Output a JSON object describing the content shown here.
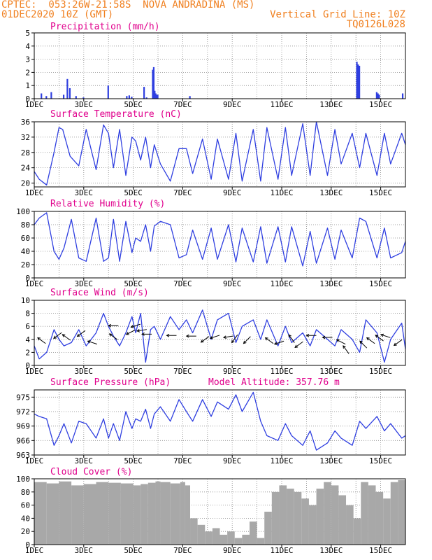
{
  "header": {
    "line1": "CPTEC:  053:26W-21:58S  NOVA ANDRADINA (MS)",
    "line2": "01DEC2020 10Z (GMT)",
    "grid_note": "Vertical Grid Line: 10Z",
    "code": "TQ0126L028"
  },
  "colors": {
    "header": "#f08020",
    "panel_title": "#e0008c",
    "series": "#2f3fe0",
    "cloud": "#a8a8a8",
    "wind_arrow": "#000000"
  },
  "chart_data": [
    {
      "id": "precip",
      "type": "bar",
      "title": "Precipitation (mm/h)",
      "ylim": [
        0,
        5
      ],
      "yticks": [
        0,
        1,
        2,
        3,
        4,
        5
      ],
      "x_day_range": [
        1,
        16
      ],
      "bars": [
        [
          1.3,
          0.4
        ],
        [
          1.5,
          0.2
        ],
        [
          1.7,
          0.5
        ],
        [
          2.2,
          0.3
        ],
        [
          2.35,
          1.5
        ],
        [
          2.45,
          0.8
        ],
        [
          2.7,
          0.2
        ],
        [
          3.0,
          0.1
        ],
        [
          4.0,
          1.0
        ],
        [
          4.75,
          0.2
        ],
        [
          4.85,
          0.25
        ],
        [
          4.95,
          0.15
        ],
        [
          5.45,
          0.9
        ],
        [
          5.55,
          0.1
        ],
        [
          5.8,
          2.2
        ],
        [
          5.84,
          2.4
        ],
        [
          5.88,
          0.6
        ],
        [
          5.92,
          0.4
        ],
        [
          5.96,
          0.3
        ],
        [
          6.0,
          0.3
        ],
        [
          7.3,
          0.2
        ],
        [
          14.05,
          2.8
        ],
        [
          14.1,
          2.6
        ],
        [
          14.15,
          2.5
        ],
        [
          14.85,
          0.5
        ],
        [
          14.9,
          0.4
        ],
        [
          14.95,
          0.3
        ],
        [
          15.9,
          0.4
        ]
      ],
      "tick_labels": [
        "1DEC",
        "3DEC",
        "5DEC",
        "7DEC",
        "9DEC",
        "11DEC",
        "13DEC",
        "15DEC"
      ]
    },
    {
      "id": "temp",
      "type": "line",
      "title": "Surface Temperature (nC)",
      "ylim": [
        19,
        36
      ],
      "yticks": [
        20,
        24,
        28,
        32,
        36
      ],
      "x_day_range": [
        1,
        16
      ],
      "x": [
        1.0,
        1.2,
        1.5,
        1.8,
        2.0,
        2.15,
        2.45,
        2.8,
        3.1,
        3.5,
        3.8,
        4.0,
        4.2,
        4.45,
        4.7,
        4.95,
        5.1,
        5.3,
        5.5,
        5.7,
        5.85,
        6.1,
        6.5,
        6.85,
        7.15,
        7.4,
        7.8,
        8.15,
        8.4,
        8.85,
        9.15,
        9.4,
        9.85,
        10.15,
        10.4,
        10.85,
        11.15,
        11.4,
        11.85,
        12.15,
        12.4,
        12.85,
        13.15,
        13.4,
        13.85,
        14.15,
        14.4,
        14.85,
        15.15,
        15.4,
        15.85,
        16.0
      ],
      "y": [
        23,
        21,
        19.5,
        28,
        34.5,
        34,
        27,
        24.5,
        34,
        23.5,
        35.2,
        33,
        24,
        34,
        22,
        32,
        31,
        26,
        32,
        24,
        30,
        25,
        20.5,
        29,
        29,
        22.5,
        31.5,
        21,
        31.5,
        21,
        33,
        20.5,
        34,
        20.5,
        34.5,
        21,
        34.5,
        22,
        35.5,
        22,
        36,
        22,
        34,
        25,
        33,
        24,
        33,
        22,
        33,
        25,
        33,
        30
      ]
    },
    {
      "id": "rh",
      "type": "line",
      "title": "Relative Humidity (%)",
      "ylim": [
        0,
        100
      ],
      "yticks": [
        0,
        20,
        40,
        60,
        80,
        100
      ],
      "x_day_range": [
        1,
        16
      ],
      "x": [
        1.0,
        1.2,
        1.5,
        1.8,
        2.0,
        2.2,
        2.5,
        2.8,
        3.1,
        3.5,
        3.8,
        4.0,
        4.2,
        4.45,
        4.7,
        4.95,
        5.1,
        5.3,
        5.5,
        5.7,
        5.85,
        6.1,
        6.5,
        6.85,
        7.15,
        7.4,
        7.8,
        8.15,
        8.4,
        8.85,
        9.15,
        9.4,
        9.85,
        10.15,
        10.4,
        10.85,
        11.15,
        11.4,
        11.85,
        12.15,
        12.4,
        12.85,
        13.15,
        13.4,
        13.85,
        14.15,
        14.4,
        14.85,
        15.15,
        15.4,
        15.85,
        16.0
      ],
      "y": [
        80,
        90,
        98,
        40,
        28,
        45,
        88,
        30,
        25,
        90,
        25,
        30,
        88,
        25,
        85,
        38,
        60,
        55,
        80,
        40,
        78,
        85,
        80,
        30,
        35,
        72,
        28,
        75,
        28,
        80,
        24,
        75,
        24,
        77,
        22,
        77,
        24,
        77,
        18,
        70,
        22,
        75,
        28,
        72,
        30,
        90,
        85,
        30,
        75,
        30,
        38,
        55
      ]
    },
    {
      "id": "wind",
      "type": "line",
      "title": "Surface Wind (m/s)",
      "ylim": [
        0,
        10
      ],
      "yticks": [
        0,
        2,
        4,
        6,
        8,
        10
      ],
      "x_day_range": [
        1,
        16
      ],
      "x": [
        1.0,
        1.2,
        1.5,
        1.8,
        2.0,
        2.2,
        2.5,
        2.8,
        3.1,
        3.5,
        3.8,
        4.0,
        4.2,
        4.45,
        4.7,
        4.95,
        5.1,
        5.3,
        5.5,
        5.7,
        5.85,
        6.1,
        6.5,
        6.85,
        7.15,
        7.4,
        7.8,
        8.15,
        8.4,
        8.85,
        9.15,
        9.4,
        9.85,
        10.15,
        10.4,
        10.85,
        11.15,
        11.4,
        11.85,
        12.15,
        12.4,
        12.85,
        13.15,
        13.4,
        13.85,
        14.15,
        14.4,
        14.85,
        15.15,
        15.4,
        15.85,
        16.0
      ],
      "y": [
        3,
        1,
        2,
        5.5,
        4,
        3,
        3.5,
        5.5,
        3,
        5,
        8,
        6,
        4.5,
        3,
        5,
        7.5,
        5,
        8,
        0.5,
        5.5,
        6,
        4,
        7.5,
        5.5,
        7,
        5,
        8.5,
        4,
        7,
        8,
        3.5,
        6,
        7,
        4,
        7,
        3,
        6,
        3.5,
        5,
        3,
        5.5,
        4,
        3,
        5.5,
        4,
        2,
        7,
        5,
        0.5,
        4,
        6.5,
        2.5
      ],
      "arrows": [
        [
          1.3,
          3.8,
          -0.2
        ],
        [
          1.95,
          4.6,
          0.2
        ],
        [
          2.3,
          4.3,
          -0.2
        ],
        [
          2.9,
          4.9,
          0.2
        ],
        [
          3.35,
          3.5,
          -0.1
        ],
        [
          4.2,
          4.4,
          -0.2
        ],
        [
          4.2,
          6.1,
          0
        ],
        [
          4.9,
          5.1,
          0.15
        ],
        [
          5.1,
          6.1,
          0.1
        ],
        [
          5.35,
          5.4,
          0.05
        ],
        [
          5.55,
          4.8,
          0
        ],
        [
          6.55,
          4.6,
          0
        ],
        [
          7.35,
          4.5,
          0
        ],
        [
          7.9,
          4.0,
          0.2
        ],
        [
          8.3,
          4.4,
          0.1
        ],
        [
          8.85,
          4.4,
          0.05
        ],
        [
          9.1,
          4.1,
          0.3
        ],
        [
          9.6,
          3.9,
          0.25
        ],
        [
          10.5,
          3.8,
          -0.2
        ],
        [
          10.9,
          3.5,
          0.1
        ],
        [
          11.4,
          4.1,
          -0.3
        ],
        [
          11.7,
          3.2,
          0.2
        ],
        [
          12.2,
          4.6,
          0
        ],
        [
          12.85,
          4.3,
          0
        ],
        [
          13.4,
          3.6,
          -0.15
        ],
        [
          13.6,
          2.4,
          -0.3
        ],
        [
          14.3,
          3.2,
          -0.25
        ],
        [
          14.6,
          3.8,
          -0.2
        ],
        [
          14.95,
          4.2,
          -0.2
        ],
        [
          15.2,
          4.5,
          -0.1
        ],
        [
          15.7,
          3.5,
          0.2
        ]
      ]
    },
    {
      "id": "pressure",
      "type": "line",
      "title": "Surface Pressure (hPa)",
      "annotation": "Model Altitude: 357.76 m",
      "ylim": [
        963,
        976.5
      ],
      "yticks": [
        963,
        966,
        969,
        972,
        975
      ],
      "x_day_range": [
        1,
        16
      ],
      "x": [
        1.0,
        1.2,
        1.5,
        1.8,
        2.0,
        2.2,
        2.5,
        2.8,
        3.1,
        3.5,
        3.8,
        4.0,
        4.2,
        4.45,
        4.7,
        4.95,
        5.1,
        5.3,
        5.5,
        5.7,
        5.85,
        6.1,
        6.5,
        6.85,
        7.15,
        7.4,
        7.8,
        8.15,
        8.4,
        8.85,
        9.15,
        9.4,
        9.85,
        10.15,
        10.4,
        10.85,
        11.15,
        11.4,
        11.85,
        12.15,
        12.4,
        12.85,
        13.15,
        13.4,
        13.85,
        14.15,
        14.4,
        14.85,
        15.15,
        15.4,
        15.85,
        16.0
      ],
      "y": [
        971.5,
        971,
        970.5,
        965,
        967,
        969.5,
        965.5,
        970,
        969.5,
        966.5,
        970.5,
        966.5,
        969.5,
        966,
        972,
        968.5,
        970.5,
        970,
        972.5,
        968.5,
        971.5,
        973,
        970,
        974.5,
        972,
        970,
        974.5,
        971,
        974,
        972.5,
        975.5,
        972,
        976,
        970,
        967,
        966,
        969.5,
        967,
        965,
        968,
        964,
        965.5,
        968,
        966.5,
        965,
        970,
        968.5,
        971,
        968,
        969.5,
        966.5,
        967
      ]
    },
    {
      "id": "cloud",
      "type": "bar",
      "title": "Cloud Cover (%)",
      "ylim": [
        0,
        100
      ],
      "yticks": [
        0,
        20,
        40,
        60,
        80,
        100
      ],
      "x_day_range": [
        1,
        16
      ],
      "x": [
        1.0,
        1.5,
        2.0,
        2.5,
        3.0,
        3.5,
        4.0,
        4.5,
        5.0,
        5.3,
        5.6,
        5.9,
        6.1,
        6.5,
        6.9,
        7.1,
        7.3,
        7.6,
        7.9,
        8.2,
        8.5,
        8.8,
        9.1,
        9.4,
        9.7,
        10.0,
        10.3,
        10.6,
        10.9,
        11.2,
        11.5,
        11.8,
        12.1,
        12.4,
        12.7,
        13.0,
        13.3,
        13.6,
        13.9,
        14.2,
        14.5,
        14.8,
        15.1,
        15.4,
        15.7,
        16.0
      ],
      "y": [
        95,
        93,
        96,
        90,
        92,
        95,
        94,
        93,
        90,
        92,
        94,
        96,
        95,
        93,
        95,
        90,
        40,
        30,
        20,
        25,
        15,
        20,
        10,
        15,
        35,
        10,
        50,
        80,
        90,
        85,
        80,
        70,
        60,
        85,
        95,
        90,
        75,
        60,
        40,
        95,
        90,
        80,
        70,
        95,
        98,
        95
      ],
      "tick_labels": [
        "1DEC",
        "3DEC",
        "5DEC",
        "7DEC",
        "9DEC",
        "11DEC",
        "13DEC",
        "15DEC"
      ]
    }
  ]
}
